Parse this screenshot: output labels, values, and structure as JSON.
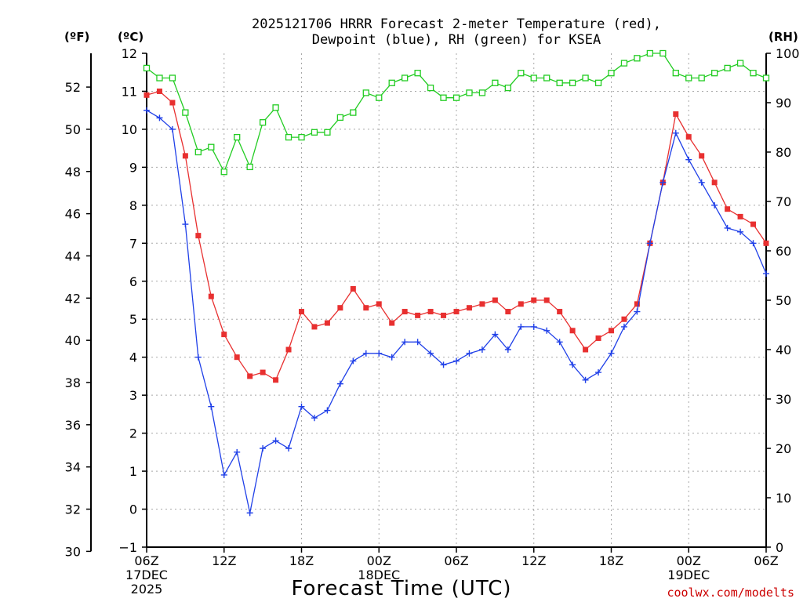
{
  "chart_data": {
    "type": "line",
    "title_line1": "2025121706 HRRR Forecast 2-meter Temperature (red),",
    "title_line2": "Dewpoint (blue), RH (green) for KSEA",
    "xlabel": "Forecast Time (UTC)",
    "credit": "coolwx.com/modelts",
    "units": {
      "fahrenheit": "(ºF)",
      "celsius": "(ºC)",
      "rh": "(RH)"
    },
    "x_range_hours": [
      0,
      48
    ],
    "x_ticks": [
      {
        "h": 0,
        "lines": [
          "06Z",
          "17DEC",
          "2025"
        ]
      },
      {
        "h": 6,
        "lines": [
          "12Z"
        ]
      },
      {
        "h": 12,
        "lines": [
          "18Z"
        ]
      },
      {
        "h": 18,
        "lines": [
          "00Z",
          "18DEC"
        ]
      },
      {
        "h": 24,
        "lines": [
          "06Z"
        ]
      },
      {
        "h": 30,
        "lines": [
          "12Z"
        ]
      },
      {
        "h": 36,
        "lines": [
          "18Z"
        ]
      },
      {
        "h": 42,
        "lines": [
          "00Z",
          "19DEC"
        ]
      },
      {
        "h": 48,
        "lines": [
          "06Z"
        ]
      }
    ],
    "y_celsius_range": [
      -1,
      12
    ],
    "y_celsius_ticks": [
      -1,
      0,
      1,
      2,
      3,
      4,
      5,
      6,
      7,
      8,
      9,
      10,
      11,
      12
    ],
    "y_fahrenheit_ticks": [
      30,
      32,
      34,
      36,
      38,
      40,
      42,
      44,
      46,
      48,
      50,
      52
    ],
    "y_rh_range": [
      0,
      100
    ],
    "y_rh_ticks": [
      0,
      10,
      20,
      30,
      40,
      50,
      60,
      70,
      80,
      90,
      100
    ],
    "series": [
      {
        "name": "Temperature",
        "axis": "celsius",
        "color": "#e83030",
        "marker": "filled-square",
        "values": [
          10.9,
          11.0,
          10.7,
          9.3,
          7.2,
          5.6,
          4.6,
          4.0,
          3.5,
          3.6,
          3.4,
          4.2,
          5.2,
          4.8,
          4.9,
          5.3,
          5.8,
          5.3,
          5.4,
          4.9,
          5.2,
          5.1,
          5.2,
          5.1,
          5.2,
          5.3,
          5.4,
          5.5,
          5.2,
          5.4,
          5.5,
          5.5,
          5.2,
          4.7,
          4.2,
          4.5,
          4.7,
          5.0,
          5.4,
          7.0,
          8.6,
          10.4,
          9.8,
          9.3,
          8.6,
          7.9,
          7.7,
          7.5,
          7.0
        ]
      },
      {
        "name": "Dewpoint",
        "axis": "celsius",
        "color": "#2040e8",
        "marker": "plus",
        "values": [
          10.5,
          10.3,
          10.0,
          7.5,
          4.0,
          2.7,
          0.9,
          1.5,
          -0.1,
          1.6,
          1.8,
          1.6,
          2.7,
          2.4,
          2.6,
          3.3,
          3.9,
          4.1,
          4.1,
          4.0,
          4.4,
          4.4,
          4.1,
          3.8,
          3.9,
          4.1,
          4.2,
          4.6,
          4.2,
          4.8,
          4.8,
          4.7,
          4.4,
          3.8,
          3.4,
          3.6,
          4.1,
          4.8,
          5.2,
          7.0,
          8.6,
          9.9,
          9.2,
          8.6,
          8.0,
          7.4,
          7.3,
          7.0,
          6.2
        ]
      },
      {
        "name": "RH",
        "axis": "rh",
        "color": "#22cc22",
        "marker": "open-square",
        "values": [
          97,
          95,
          95,
          88,
          80,
          81,
          76,
          83,
          77,
          86,
          89,
          83,
          83,
          84,
          84,
          87,
          88,
          92,
          91,
          94,
          95,
          96,
          93,
          91,
          91,
          92,
          92,
          94,
          93,
          96,
          95,
          95,
          94,
          94,
          95,
          94,
          96,
          98,
          99,
          100,
          100,
          96,
          95,
          95,
          96,
          97,
          98,
          96,
          95
        ]
      }
    ]
  }
}
